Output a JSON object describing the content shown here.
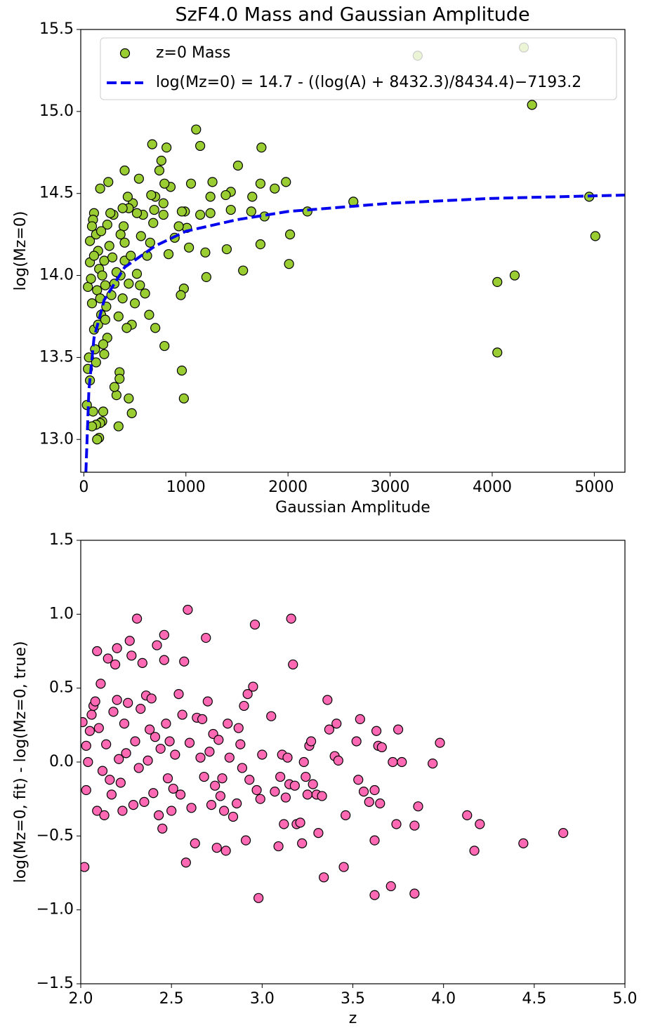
{
  "chart_data": [
    {
      "type": "scatter",
      "title": "SzF4.0 Mass and Gaussian Amplitude",
      "xlabel": "Gaussian Amplitude",
      "ylabel": "log(Mz=0)",
      "xlim": [
        -30,
        5300
      ],
      "ylim": [
        12.8,
        15.5
      ],
      "xticks": [
        0,
        1000,
        2000,
        3000,
        4000,
        5000
      ],
      "yticks": [
        {
          "value": 13,
          "label": "13.0"
        },
        13.5,
        {
          "value": 14,
          "label": "14.0"
        },
        14.5,
        {
          "value": 15,
          "label": "15.0"
        },
        15.5
      ],
      "legend": "upper center",
      "series": [
        {
          "name": "z=0 Mass",
          "kind": "scatter",
          "color": "#9acd32",
          "x": [
            3270,
            4310,
            4390,
            4950,
            5010,
            4050,
            4220,
            4050,
            2640,
            2190,
            2020,
            2010,
            1980,
            1870,
            1770,
            1740,
            1730,
            1730,
            1650,
            1640,
            1560,
            1510,
            1440,
            1400,
            1390,
            1440,
            1260,
            1240,
            1240,
            1190,
            1200,
            1140,
            1100,
            1140,
            1050,
            1030,
            1010,
            990,
            960,
            930,
            980,
            950,
            960,
            980,
            890,
            850,
            830,
            810,
            790,
            780,
            780,
            790,
            760,
            740,
            700,
            670,
            660,
            690,
            680,
            700,
            650,
            620,
            580,
            560,
            540,
            520,
            520,
            480,
            470,
            440,
            470,
            430,
            440,
            400,
            380,
            390,
            400,
            360,
            350,
            350,
            340,
            320,
            300,
            290,
            260,
            240,
            210,
            200,
            190,
            180,
            160,
            160,
            150,
            130,
            120,
            100,
            90,
            80,
            80,
            90,
            60,
            60,
            40,
            30,
            40,
            50,
            60,
            70,
            80,
            100,
            110,
            120,
            130,
            140,
            150,
            170,
            180,
            200,
            220,
            230,
            250,
            270,
            280,
            300,
            320,
            340,
            360,
            380,
            400,
            420,
            440,
            460,
            500,
            550,
            600,
            640,
            140,
            160,
            190,
            210,
            230,
            120,
            100,
            170
          ],
          "values": [
            15.34,
            15.39,
            15.04,
            14.48,
            14.24,
            13.96,
            14.0,
            13.53,
            14.45,
            14.39,
            14.25,
            14.07,
            14.57,
            14.53,
            14.36,
            14.78,
            14.56,
            14.19,
            14.48,
            14.39,
            14.03,
            14.67,
            14.51,
            14.16,
            14.49,
            14.4,
            14.57,
            14.48,
            14.38,
            14.14,
            13.99,
            14.79,
            14.89,
            14.37,
            14.56,
            14.17,
            14.29,
            14.39,
            14.39,
            14.3,
            13.92,
            13.88,
            13.42,
            13.25,
            14.23,
            14.54,
            14.13,
            14.78,
            14.56,
            14.37,
            14.44,
            13.57,
            14.7,
            14.64,
            14.48,
            14.8,
            14.49,
            14.4,
            14.32,
            13.68,
            14.2,
            14.12,
            14.37,
            14.24,
            14.59,
            14.38,
            14.01,
            14.44,
            13.7,
            13.25,
            13.16,
            14.48,
            14.41,
            14.64,
            14.41,
            14.3,
            14.2,
            14.0,
            13.41,
            13.37,
            13.08,
            13.27,
            13.32,
            14.37,
            14.38,
            14.57,
            13.94,
            13.52,
            13.17,
            13.11,
            13.1,
            14.53,
            13.01,
            13.0,
            13.09,
            14.38,
            14.34,
            14.3,
            13.08,
            13.17,
            14.21,
            13.36,
            13.93,
            13.21,
            13.43,
            13.5,
            14.08,
            13.98,
            13.83,
            13.67,
            13.55,
            13.47,
            13.91,
            14.15,
            14.04,
            13.76,
            14.0,
            14.09,
            13.81,
            13.62,
            14.18,
            13.88,
            14.11,
            13.95,
            14.02,
            13.75,
            14.25,
            13.86,
            14.09,
            13.68,
            13.95,
            14.12,
            13.83,
            13.94,
            13.89,
            13.76,
            13.7,
            13.86,
            13.58,
            13.73,
            14.31,
            14.25,
            14.12,
            14.27
          ]
        },
        {
          "name": "log(Mz=0) = 14.7 - ((log(A) + 8432.3)/8434.4)−7193.2",
          "kind": "line",
          "linestyle": "dashed",
          "color": "#0000ee",
          "x": [
            20,
            50,
            100,
            200,
            400,
            700,
            1000,
            1500,
            2000,
            3000,
            4000,
            5300
          ],
          "values": [
            12.8,
            13.3,
            13.62,
            13.85,
            14.05,
            14.18,
            14.27,
            14.34,
            14.39,
            14.44,
            14.47,
            14.49
          ]
        }
      ]
    },
    {
      "type": "scatter",
      "xlabel": "z",
      "ylabel": "log(Mz=0, fit) - log(Mz=0, true)",
      "xlim": [
        2,
        5
      ],
      "ylim": [
        -1.5,
        1.5
      ],
      "xticks": [
        {
          "value": 2,
          "label": "2.0"
        },
        2.5,
        {
          "value": 3,
          "label": "3.0"
        },
        3.5,
        {
          "value": 4,
          "label": "4.0"
        },
        4.5,
        {
          "value": 5,
          "label": "5.0"
        }
      ],
      "yticks": [
        {
          "value": -1.5,
          "label": "−1.5"
        },
        {
          "value": -1,
          "label": "−1.0"
        },
        {
          "value": -0.5,
          "label": "−0.5"
        },
        {
          "value": 0,
          "label": "0.0"
        },
        0.5,
        {
          "value": 1,
          "label": "1.0"
        },
        1.5
      ],
      "series": [
        {
          "kind": "scatter",
          "color": "#ff69b4",
          "x": [
            2.01,
            2.02,
            2.03,
            2.03,
            2.04,
            2.05,
            2.06,
            2.07,
            2.08,
            2.09,
            2.09,
            2.1,
            2.11,
            2.12,
            2.13,
            2.14,
            2.15,
            2.16,
            2.17,
            2.18,
            2.19,
            2.2,
            2.2,
            2.21,
            2.22,
            2.23,
            2.24,
            2.25,
            2.26,
            2.27,
            2.28,
            2.29,
            2.3,
            2.31,
            2.32,
            2.33,
            2.34,
            2.35,
            2.36,
            2.37,
            2.38,
            2.39,
            2.4,
            2.41,
            2.42,
            2.43,
            2.44,
            2.45,
            2.46,
            2.46,
            2.47,
            2.48,
            2.49,
            2.5,
            2.51,
            2.52,
            2.54,
            2.55,
            2.56,
            2.57,
            2.58,
            2.59,
            2.6,
            2.61,
            2.63,
            2.64,
            2.66,
            2.67,
            2.68,
            2.69,
            2.7,
            2.71,
            2.72,
            2.73,
            2.74,
            2.75,
            2.76,
            2.77,
            2.78,
            2.79,
            2.8,
            2.81,
            2.82,
            2.84,
            2.86,
            2.87,
            2.88,
            2.89,
            2.9,
            2.91,
            2.92,
            2.93,
            2.95,
            2.96,
            2.97,
            2.98,
            2.99,
            3.0,
            3.05,
            3.07,
            3.09,
            3.1,
            3.11,
            3.12,
            3.13,
            3.14,
            3.15,
            3.16,
            3.17,
            3.18,
            3.19,
            3.21,
            3.22,
            3.23,
            3.24,
            3.25,
            3.26,
            3.27,
            3.28,
            3.3,
            3.31,
            3.33,
            3.34,
            3.36,
            3.37,
            3.4,
            3.41,
            3.42,
            3.45,
            3.46,
            3.52,
            3.53,
            3.54,
            3.56,
            3.59,
            3.62,
            3.62,
            3.62,
            3.63,
            3.64,
            3.65,
            3.66,
            3.71,
            3.72,
            3.74,
            3.75,
            3.77,
            3.84,
            3.84,
            3.86,
            3.94,
            3.98,
            4.13,
            4.17,
            4.2,
            4.44,
            4.66
          ],
          "values": [
            0.27,
            -0.71,
            0.11,
            -0.19,
            0.0,
            0.21,
            0.32,
            0.38,
            0.41,
            0.75,
            -0.33,
            0.23,
            0.53,
            -0.06,
            -0.36,
            0.12,
            0.7,
            -0.12,
            -0.22,
            0.34,
            0.66,
            0.77,
            0.42,
            0.02,
            -0.14,
            -0.33,
            0.26,
            0.06,
            0.4,
            0.82,
            0.72,
            -0.29,
            0.14,
            0.97,
            -0.04,
            0.36,
            0.67,
            -0.27,
            0.45,
            0.01,
            0.22,
            0.43,
            -0.21,
            0.17,
            0.79,
            -0.36,
            0.09,
            -0.45,
            0.86,
            0.69,
            0.26,
            -0.11,
            0.14,
            -0.33,
            -0.18,
            0.05,
            0.46,
            -0.22,
            0.32,
            0.68,
            -0.68,
            1.03,
            0.13,
            -0.31,
            -0.55,
            0.3,
            0.03,
            0.29,
            -0.1,
            0.84,
            0.41,
            0.07,
            -0.29,
            0.19,
            -0.16,
            -0.58,
            0.15,
            -0.23,
            -0.11,
            -0.33,
            -0.6,
            0.26,
            0.03,
            -0.37,
            -0.28,
            0.23,
            0.12,
            -0.04,
            0.38,
            -0.53,
            0.46,
            -0.12,
            0.51,
            0.93,
            -0.19,
            -0.92,
            -0.25,
            0.05,
            0.31,
            -0.2,
            -0.57,
            -0.1,
            0.05,
            -0.42,
            -0.24,
            0.03,
            -0.15,
            0.97,
            0.66,
            -0.16,
            -0.42,
            -0.41,
            -0.55,
            0.0,
            -0.1,
            -0.22,
            0.11,
            0.14,
            -0.15,
            -0.22,
            -0.48,
            -0.23,
            -0.78,
            0.42,
            0.22,
            0.04,
            0.26,
            0.01,
            -0.71,
            -0.36,
            0.14,
            -0.12,
            0.29,
            -0.2,
            -0.27,
            -0.19,
            -0.9,
            -0.53,
            0.21,
            0.11,
            -0.28,
            0.1,
            -0.84,
            0.0,
            -0.42,
            0.22,
            0.0,
            -0.89,
            -0.43,
            -0.3,
            -0.01,
            0.13,
            -0.36,
            -0.6,
            -0.42,
            -0.55,
            -0.48
          ]
        }
      ]
    }
  ]
}
